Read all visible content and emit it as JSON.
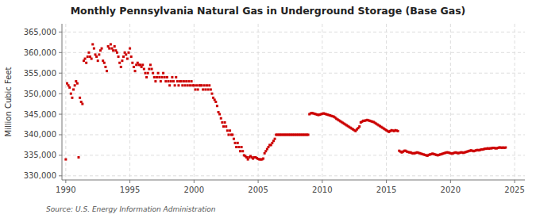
{
  "chart_data": {
    "type": "scatter",
    "title": "Monthly Pennsylvania Natural Gas in Underground Storage (Base Gas)",
    "ylabel": "Million Cubic Feet",
    "source": "Source: U.S. Energy Information Administration",
    "color": "#cc0000",
    "marker": "square",
    "grid": true,
    "ylim": [
      329000,
      367000
    ],
    "yticks": [
      {
        "value": 330000,
        "label": "330,000"
      },
      {
        "value": 335000,
        "label": "335,000"
      },
      {
        "value": 340000,
        "label": "340,000"
      },
      {
        "value": 345000,
        "label": "345,000"
      },
      {
        "value": 350000,
        "label": "350,000"
      },
      {
        "value": 355000,
        "label": "355,000"
      },
      {
        "value": 360000,
        "label": "360,000"
      },
      {
        "value": 365000,
        "label": "365,000"
      }
    ],
    "xlim": [
      1989.7,
      2025.8
    ],
    "xticks": [
      1990,
      1995,
      2000,
      2005,
      2010,
      2015,
      2020,
      2025
    ],
    "x": [
      1990.0,
      1990.1,
      1990.2,
      1990.3,
      1990.4,
      1990.5,
      1990.6,
      1990.7,
      1990.8,
      1990.9,
      1991.0,
      1991.1,
      1991.2,
      1991.3,
      1991.4,
      1991.5,
      1991.6,
      1991.7,
      1991.8,
      1991.9,
      1992.0,
      1992.1,
      1992.2,
      1992.3,
      1992.4,
      1992.5,
      1992.6,
      1992.7,
      1992.8,
      1992.9,
      1993.0,
      1993.1,
      1993.2,
      1993.3,
      1993.4,
      1993.5,
      1993.6,
      1993.7,
      1993.8,
      1993.9,
      1994.0,
      1994.1,
      1994.2,
      1994.3,
      1994.4,
      1994.5,
      1994.6,
      1994.7,
      1994.8,
      1994.9,
      1995.0,
      1995.1,
      1995.2,
      1995.3,
      1995.4,
      1995.5,
      1995.6,
      1995.7,
      1995.8,
      1995.9,
      1996.0,
      1996.1,
      1996.2,
      1996.3,
      1996.4,
      1996.5,
      1996.6,
      1996.7,
      1996.8,
      1996.9,
      1997.0,
      1997.1,
      1997.2,
      1997.3,
      1997.4,
      1997.5,
      1997.6,
      1997.7,
      1997.8,
      1997.9,
      1998.0,
      1998.1,
      1998.2,
      1998.3,
      1998.4,
      1998.5,
      1998.6,
      1998.7,
      1998.8,
      1998.9,
      1999.0,
      1999.1,
      1999.2,
      1999.3,
      1999.4,
      1999.5,
      1999.6,
      1999.7,
      1999.8,
      1999.9,
      2000.0,
      2000.1,
      2000.2,
      2000.3,
      2000.4,
      2000.5,
      2000.6,
      2000.7,
      2000.8,
      2000.9,
      2001.0,
      2001.1,
      2001.2,
      2001.3,
      2001.4,
      2001.5,
      2001.6,
      2001.7,
      2001.8,
      2001.9,
      2002.0,
      2002.1,
      2002.2,
      2002.3,
      2002.4,
      2002.5,
      2002.6,
      2002.7,
      2002.8,
      2002.9,
      2003.0,
      2003.1,
      2003.2,
      2003.3,
      2003.4,
      2003.5,
      2003.6,
      2003.7,
      2003.8,
      2003.9,
      2004.0,
      2004.1,
      2004.2,
      2004.3,
      2004.4,
      2004.5,
      2004.6,
      2004.7,
      2004.8,
      2004.9,
      2005.0,
      2005.1,
      2005.2,
      2005.3,
      2005.4,
      2005.5,
      2005.6,
      2005.7,
      2005.8,
      2005.9,
      2006.0,
      2006.1,
      2006.2,
      2006.3,
      2006.4,
      2006.5,
      2006.6,
      2006.7,
      2006.8,
      2006.9,
      2007.0,
      2007.1,
      2007.2,
      2007.3,
      2007.4,
      2007.5,
      2007.6,
      2007.7,
      2007.8,
      2007.9,
      2008.0,
      2008.1,
      2008.2,
      2008.3,
      2008.4,
      2008.5,
      2008.6,
      2008.7,
      2008.8,
      2008.9,
      2009.0,
      2009.1,
      2009.2,
      2009.3,
      2009.4,
      2009.5,
      2009.6,
      2009.7,
      2009.8,
      2009.9,
      2010.0,
      2010.1,
      2010.2,
      2010.3,
      2010.4,
      2010.5,
      2010.6,
      2010.7,
      2010.8,
      2010.9,
      2011.0,
      2011.1,
      2011.2,
      2011.3,
      2011.4,
      2011.5,
      2011.6,
      2011.7,
      2011.8,
      2011.9,
      2012.0,
      2012.1,
      2012.2,
      2012.3,
      2012.4,
      2012.5,
      2012.6,
      2012.7,
      2012.8,
      2012.9,
      2013.0,
      2013.1,
      2013.2,
      2013.3,
      2013.4,
      2013.5,
      2013.6,
      2013.7,
      2013.8,
      2013.9,
      2014.0,
      2014.1,
      2014.2,
      2014.3,
      2014.4,
      2014.5,
      2014.6,
      2014.7,
      2014.8,
      2014.9,
      2015.0,
      2015.1,
      2015.2,
      2015.3,
      2015.4,
      2015.5,
      2015.6,
      2015.7,
      2015.8,
      2015.9,
      2016.0,
      2016.1,
      2016.2,
      2016.3,
      2016.4,
      2016.5,
      2016.6,
      2016.7,
      2016.8,
      2016.9,
      2017.0,
      2017.1,
      2017.2,
      2017.3,
      2017.4,
      2017.5,
      2017.6,
      2017.7,
      2017.8,
      2017.9,
      2018.0,
      2018.1,
      2018.2,
      2018.3,
      2018.4,
      2018.5,
      2018.6,
      2018.7,
      2018.8,
      2018.9,
      2019.0,
      2019.1,
      2019.2,
      2019.3,
      2019.4,
      2019.5,
      2019.6,
      2019.7,
      2019.8,
      2019.9,
      2020.0,
      2020.1,
      2020.2,
      2020.3,
      2020.4,
      2020.5,
      2020.6,
      2020.7,
      2020.8,
      2020.9,
      2021.0,
      2021.1,
      2021.2,
      2021.3,
      2021.4,
      2021.5,
      2021.6,
      2021.7,
      2021.8,
      2021.9,
      2022.0,
      2022.1,
      2022.2,
      2022.3,
      2022.4,
      2022.5,
      2022.6,
      2022.7,
      2022.8,
      2022.9,
      2023.0,
      2023.1,
      2023.2,
      2023.3,
      2023.4,
      2023.5,
      2023.6,
      2023.7,
      2023.8,
      2023.9,
      2024.0,
      2024.1,
      2024.2,
      2024.3
    ],
    "values": [
      334000,
      352500,
      352000,
      351500,
      350000,
      349000,
      351000,
      352000,
      353000,
      352500,
      334500,
      349000,
      348000,
      347500,
      358000,
      358500,
      357500,
      359000,
      360000,
      359000,
      358500,
      362000,
      361000,
      359500,
      359000,
      358000,
      359500,
      360500,
      361000,
      358000,
      357500,
      356500,
      355500,
      361500,
      361000,
      362000,
      361000,
      360500,
      361500,
      360500,
      360000,
      359000,
      357500,
      356500,
      358000,
      359000,
      360000,
      359500,
      358500,
      360000,
      361000,
      359000,
      357500,
      356500,
      355500,
      357000,
      357500,
      357000,
      357000,
      356500,
      357000,
      356000,
      355000,
      354000,
      355000,
      356000,
      357000,
      356000,
      355000,
      354000,
      353000,
      354000,
      355000,
      354000,
      353000,
      354000,
      355000,
      354000,
      353000,
      354000,
      353000,
      352000,
      353000,
      354000,
      353000,
      352000,
      354000,
      353000,
      352000,
      353000,
      353000,
      352000,
      353000,
      352000,
      353000,
      352000,
      353000,
      352000,
      353000,
      352000,
      352000,
      351000,
      352000,
      351000,
      352000,
      352000,
      352000,
      351000,
      352000,
      351000,
      352000,
      351000,
      352000,
      351000,
      350000,
      349000,
      348500,
      348000,
      347000,
      345500,
      345000,
      344000,
      343000,
      342000,
      343000,
      342000,
      341000,
      340000,
      341000,
      340000,
      340000,
      339000,
      338000,
      337000,
      338000,
      337000,
      336000,
      337000,
      336000,
      335000,
      334800,
      334500,
      334000,
      334500,
      334800,
      334500,
      334200,
      334500,
      334500,
      334300,
      334100,
      334000,
      334000,
      334000,
      334200,
      335500,
      336000,
      336500,
      337000,
      337500,
      337500,
      338000,
      338500,
      339000,
      340000,
      340000,
      340000,
      340000,
      340000,
      340000,
      340000,
      340000,
      340000,
      340000,
      340000,
      340000,
      340000,
      340000,
      340000,
      340000,
      340000,
      340000,
      340000,
      340000,
      340000,
      340000,
      340000,
      340000,
      340000,
      340000,
      345000,
      345200,
      345300,
      345200,
      345100,
      345000,
      344900,
      344800,
      344900,
      345000,
      345100,
      345200,
      345100,
      345000,
      344900,
      344800,
      344700,
      344600,
      344500,
      344400,
      344200,
      343900,
      343700,
      343500,
      343300,
      343100,
      342900,
      342700,
      342500,
      342300,
      342100,
      341900,
      341700,
      341500,
      341300,
      341100,
      340900,
      341300,
      341600,
      342000,
      343000,
      343200,
      343400,
      343400,
      343500,
      343600,
      343500,
      343400,
      343300,
      343200,
      343100,
      342900,
      342700,
      342500,
      342300,
      342100,
      341900,
      341700,
      341500,
      341300,
      341100,
      340900,
      340700,
      340900,
      341100,
      341000,
      340900,
      341100,
      341000,
      340900,
      336100,
      335900,
      335700,
      335900,
      336100,
      336100,
      335900,
      335800,
      335700,
      335700,
      335500,
      335500,
      335500,
      335600,
      335700,
      335600,
      335500,
      335400,
      335300,
      335200,
      335100,
      335000,
      334900,
      335100,
      335200,
      335300,
      335400,
      335300,
      335200,
      335100,
      335000,
      335100,
      335200,
      335300,
      335400,
      335500,
      335600,
      335700,
      335700,
      335600,
      335500,
      335400,
      335500,
      335600,
      335700,
      335600,
      335500,
      335600,
      335700,
      335700,
      335600,
      335700,
      335800,
      335900,
      336000,
      336100,
      336200,
      336100,
      336000,
      336100,
      336200,
      336300,
      336200,
      336300,
      336400,
      336400,
      336500,
      336600,
      336600,
      336700,
      336600,
      336700,
      336700,
      336800,
      336800,
      336700,
      336700,
      336800,
      336900,
      336900,
      336800,
      336900,
      336800,
      336900
    ]
  }
}
